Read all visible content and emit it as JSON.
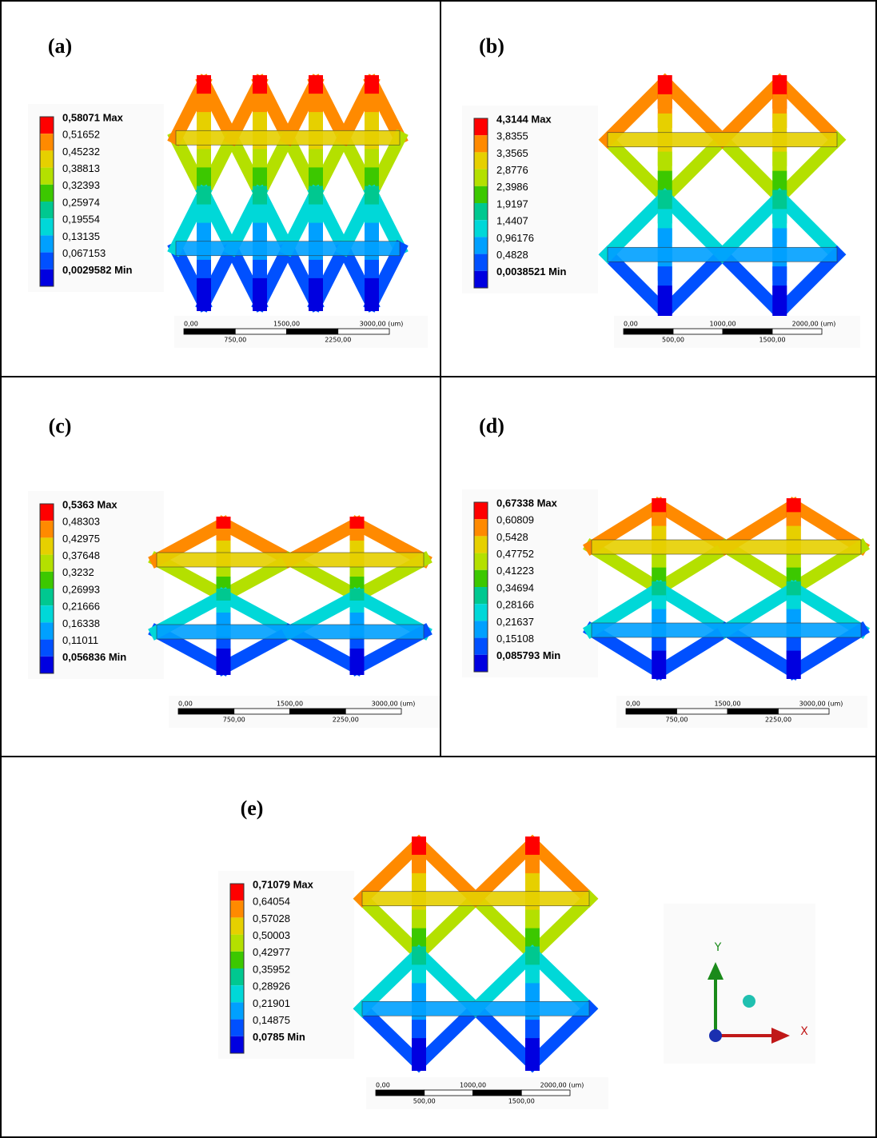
{
  "panels": [
    {
      "label": "(a)",
      "legend": [
        "0,58071 Max",
        "0,51652",
        "0,45232",
        "0,38813",
        "0,32393",
        "0,25974",
        "0,19554",
        "0,13135",
        "0,067153",
        "0,0029582 Min"
      ],
      "scale_top": [
        "0,00",
        "1500,00",
        "3000,00 (um)"
      ],
      "scale_bottom": [
        "750,00",
        "2250,00"
      ]
    },
    {
      "label": "(b)",
      "legend": [
        "4,3144 Max",
        "3,8355",
        "3,3565",
        "2,8776",
        "2,3986",
        "1,9197",
        "1,4407",
        "0,96176",
        "0,4828",
        "0,0038521 Min"
      ],
      "scale_top": [
        "0,00",
        "1000,00",
        "2000,00 (um)"
      ],
      "scale_bottom": [
        "500,00",
        "1500,00"
      ]
    },
    {
      "label": "(c)",
      "legend": [
        "0,5363 Max",
        "0,48303",
        "0,42975",
        "0,37648",
        "0,3232",
        "0,26993",
        "0,21666",
        "0,16338",
        "0,11011",
        "0,056836 Min"
      ],
      "scale_top": [
        "0,00",
        "1500,00",
        "3000,00 (um)"
      ],
      "scale_bottom": [
        "750,00",
        "2250,00"
      ]
    },
    {
      "label": "(d)",
      "legend": [
        "0,67338 Max",
        "0,60809",
        "0,5428",
        "0,47752",
        "0,41223",
        "0,34694",
        "0,28166",
        "0,21637",
        "0,15108",
        "0,085793 Min"
      ],
      "scale_top": [
        "0,00",
        "1500,00",
        "3000,00 (um)"
      ],
      "scale_bottom": [
        "750,00",
        "2250,00"
      ]
    },
    {
      "label": "(e)",
      "legend": [
        "0,71079 Max",
        "0,64054",
        "0,57028",
        "0,50003",
        "0,42977",
        "0,35952",
        "0,28926",
        "0,21901",
        "0,14875",
        "0,0785 Min"
      ],
      "scale_top": [
        "0,00",
        "1000,00",
        "2000,00 (um)"
      ],
      "scale_bottom": [
        "500,00",
        "1500,00"
      ]
    }
  ],
  "axes": {
    "y": "Y",
    "x": "X"
  }
}
